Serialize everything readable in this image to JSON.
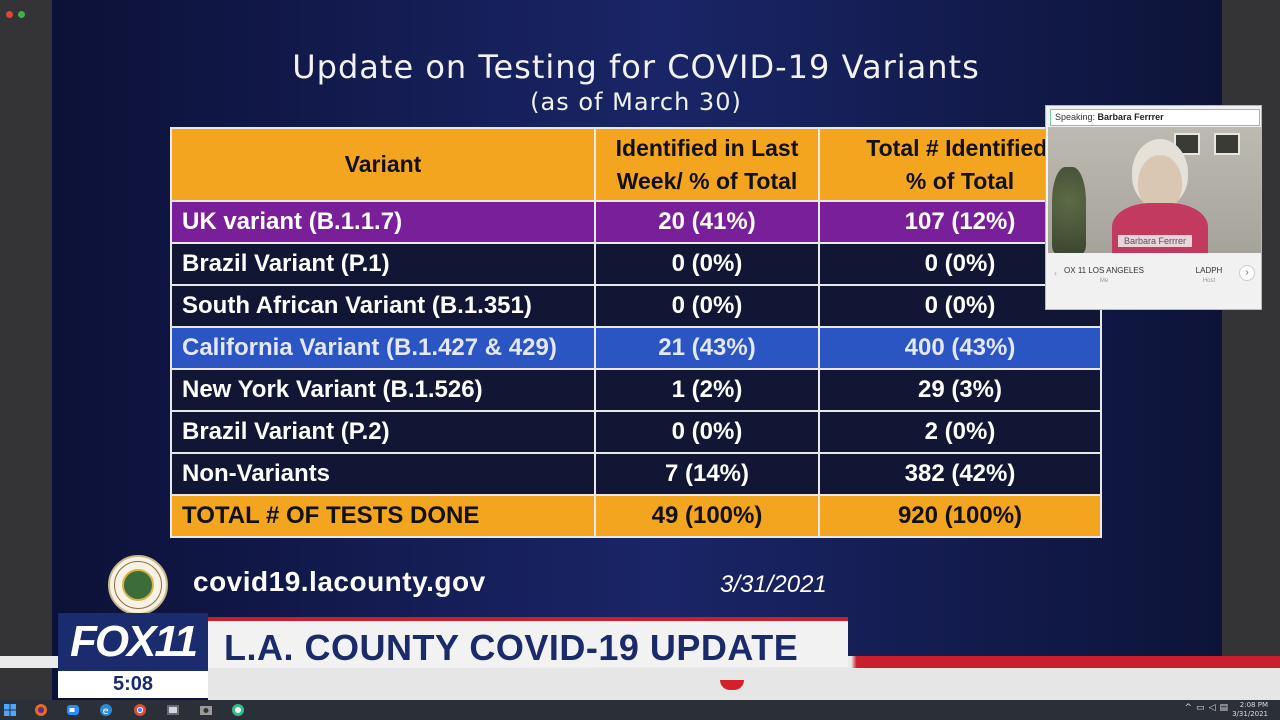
{
  "slide": {
    "title": "Update on Testing for COVID-19 Variants",
    "subtitle": "(as of March 30)",
    "table": {
      "headers": [
        "Variant",
        "Identified in Last Week/ % of Total",
        "Total # Identified/ % of Total"
      ],
      "header_c2_l1": "Identified in Last",
      "header_c2_l2": "Week/ % of Total",
      "header_c3_l1": "Total # Identified/",
      "header_c3_l2": "% of Total",
      "rows": [
        {
          "variant": "UK variant (B.1.1.7)",
          "last_week": "20 (41%)",
          "total": "107 (12%)"
        },
        {
          "variant": "Brazil Variant (P.1)",
          "last_week": "0 (0%)",
          "total": "0 (0%)"
        },
        {
          "variant": "South African Variant (B.1.351)",
          "last_week": "0 (0%)",
          "total": "0 (0%)"
        },
        {
          "variant": "California Variant (B.1.427 & 429)",
          "last_week": "21 (43%)",
          "total": "400 (43%)"
        },
        {
          "variant": "New York Variant (B.1.526)",
          "last_week": "1 (2%)",
          "total": "29 (3%)"
        },
        {
          "variant": "Brazil Variant (P.2)",
          "last_week": "0 (0%)",
          "total": "2 (0%)"
        },
        {
          "variant": "Non-Variants",
          "last_week": "7 (14%)",
          "total": "382 (42%)"
        },
        {
          "variant": "TOTAL # OF TESTS DONE",
          "last_week": "49 (100%)",
          "total": "920 (100%)"
        }
      ]
    },
    "website": "covid19.lacounty.gov",
    "date": "3/31/2021"
  },
  "video_call": {
    "speaking_label": "Speaking:",
    "speaker": "Barbara Ferrrer",
    "name_tag": "Barbara Ferrrer",
    "participants": [
      {
        "name": "OX 11 LOS ANGELES",
        "role": "Me"
      },
      {
        "name": "LADPH",
        "role": "Host"
      }
    ]
  },
  "broadcast": {
    "logo": "FOX11",
    "time": "5:08",
    "headline": "L.A. COUNTY COVID-19 UPDATE"
  },
  "taskbar": {
    "clock_time": "2:08 PM",
    "clock_date": "3/31/2021"
  },
  "colors": {
    "header_orange": "#f3a520",
    "uk_purple": "#7a1f9a",
    "california_blue": "#2a55c2",
    "fox_blue": "#1a2c6e",
    "fox_red": "#c91f2c"
  }
}
